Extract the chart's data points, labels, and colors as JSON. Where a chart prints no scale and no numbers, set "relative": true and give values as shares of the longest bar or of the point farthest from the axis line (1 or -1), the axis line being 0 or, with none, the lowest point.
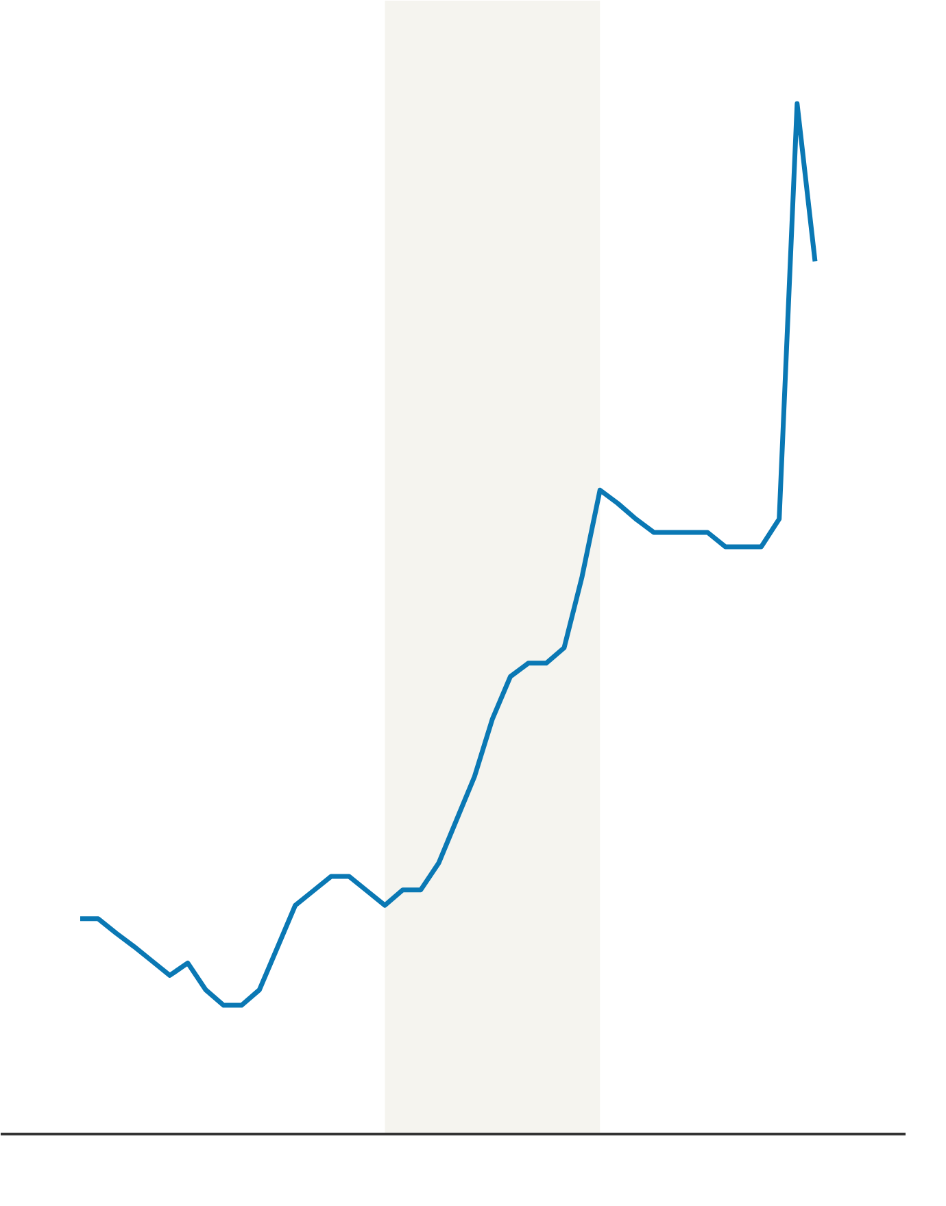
{
  "chart_data": {
    "type": "line",
    "relative": true,
    "categories": [
      null,
      null,
      null,
      null,
      null,
      null,
      null,
      null,
      null,
      null,
      null,
      null,
      null,
      null,
      null,
      null,
      null,
      null,
      null,
      null,
      null,
      null,
      null,
      null,
      null,
      null,
      null,
      null,
      null,
      null,
      null,
      null,
      null,
      null,
      null,
      null,
      null,
      null,
      null,
      null,
      null,
      null
    ],
    "series": [
      {
        "color": "#0a78b4",
        "values": [
          0.209,
          0.209,
          0.195,
          0.182,
          0.168,
          0.154,
          0.166,
          0.14,
          0.125,
          0.125,
          0.14,
          0.181,
          0.222,
          0.236,
          0.25,
          0.25,
          0.236,
          0.222,
          0.237,
          0.237,
          0.263,
          0.305,
          0.347,
          0.403,
          0.444,
          0.457,
          0.457,
          0.472,
          0.541,
          0.625,
          0.612,
          0.597,
          0.584,
          0.584,
          0.584,
          0.584,
          0.57,
          0.57,
          0.57,
          0.597,
          1,
          0.847
        ]
      }
    ],
    "grid": false,
    "marker": "none",
    "line_style": "solid"
  }
}
